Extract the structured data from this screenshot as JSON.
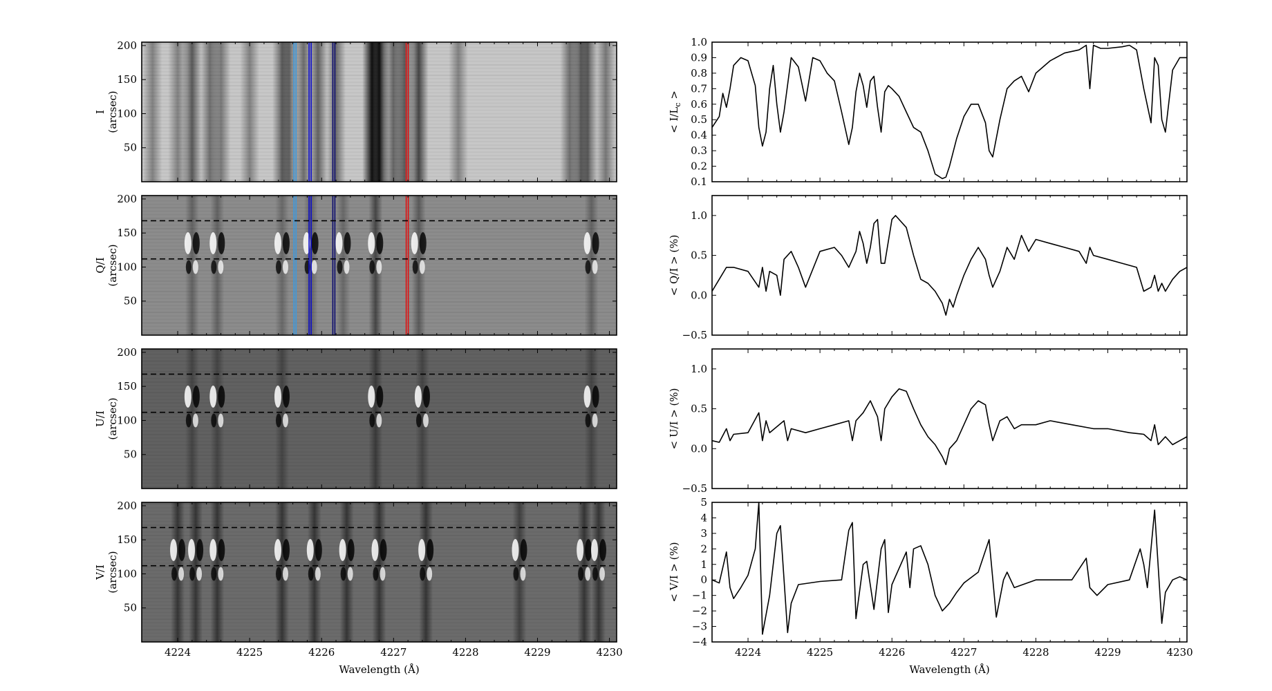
{
  "figure": {
    "wavelength_label": "Wavelength (Å)",
    "x_ticks": [
      4224,
      4225,
      4226,
      4227,
      4228,
      4229,
      4230
    ],
    "xlim": [
      4223.5,
      4230.1
    ]
  },
  "chart_data": [
    {
      "type": "heatmap",
      "panel": "I",
      "ylabel": [
        "I",
        "(arcsec)"
      ],
      "ylim": [
        0,
        205
      ],
      "y_ticks": [
        50,
        100,
        150,
        200
      ],
      "xlabel": "",
      "colormap": "gray",
      "background_level": 0.78,
      "band_center_wavelengths": [
        4223.65,
        4224.0,
        4224.2,
        4224.45,
        4224.6,
        4225.0,
        4225.45,
        4225.55,
        4225.75,
        4225.95,
        4226.2,
        4226.7,
        4226.8,
        4227.0,
        4227.15,
        4227.35,
        4227.9,
        4229.45,
        4229.6,
        4229.7,
        4229.95
      ],
      "band_darkness": [
        0.35,
        0.35,
        0.55,
        0.45,
        0.4,
        0.35,
        0.5,
        0.45,
        0.45,
        0.5,
        0.45,
        0.9,
        0.9,
        0.5,
        0.55,
        0.65,
        0.35,
        0.45,
        0.5,
        0.5,
        0.4
      ],
      "vertical_markers": [
        {
          "wavelength": 4225.63,
          "color": "#3b9ae1"
        },
        {
          "wavelength": 4225.84,
          "color": "#0a0ad0"
        },
        {
          "wavelength": 4226.17,
          "color": "#0a0a6e"
        },
        {
          "wavelength": 4227.19,
          "color": "#e01010"
        }
      ],
      "horizontal_dashed": []
    },
    {
      "type": "heatmap",
      "panel": "Q/I",
      "ylabel": [
        "Q/I",
        "(arcsec)"
      ],
      "ylim": [
        0,
        205
      ],
      "y_ticks": [
        50,
        100,
        150,
        200
      ],
      "xlabel": "",
      "colormap": "gray",
      "background_level": 0.55,
      "band_center_wavelengths": [
        4224.2,
        4224.55,
        4225.45,
        4225.85,
        4226.3,
        4226.75,
        4227.35,
        4229.75
      ],
      "band_darkness": [
        0.3,
        0.3,
        0.25,
        0.3,
        0.25,
        0.5,
        0.35,
        0.3
      ],
      "vertical_markers": [
        {
          "wavelength": 4225.63,
          "color": "#3b9ae1"
        },
        {
          "wavelength": 4225.84,
          "color": "#0a0ad0"
        },
        {
          "wavelength": 4226.17,
          "color": "#0a0a6e"
        },
        {
          "wavelength": 4227.19,
          "color": "#e01010"
        }
      ],
      "horizontal_dashed": [
        168,
        112
      ]
    },
    {
      "type": "heatmap",
      "panel": "U/I",
      "ylabel": [
        "U/I",
        "(arcsec)"
      ],
      "ylim": [
        0,
        205
      ],
      "y_ticks": [
        50,
        100,
        150,
        200
      ],
      "xlabel": "",
      "colormap": "gray",
      "background_level": 0.38,
      "band_center_wavelengths": [
        4224.2,
        4224.55,
        4225.45,
        4226.75,
        4227.4,
        4229.75
      ],
      "band_darkness": [
        0.3,
        0.3,
        0.3,
        0.4,
        0.3,
        0.3
      ],
      "vertical_markers": [],
      "horizontal_dashed": [
        168,
        112
      ]
    },
    {
      "type": "heatmap",
      "panel": "V/I",
      "ylabel": [
        "V/I",
        "(arcsec)"
      ],
      "ylim": [
        0,
        205
      ],
      "y_ticks": [
        50,
        100,
        150,
        200
      ],
      "xlabel": "Wavelength (Å)",
      "colormap": "gray",
      "background_level": 0.42,
      "band_center_wavelengths": [
        4224.0,
        4224.25,
        4224.55,
        4225.45,
        4225.9,
        4226.35,
        4226.8,
        4227.45,
        4228.75,
        4229.65,
        4229.85
      ],
      "band_darkness": [
        0.5,
        0.5,
        0.5,
        0.5,
        0.5,
        0.5,
        0.5,
        0.5,
        0.4,
        0.5,
        0.5
      ],
      "vertical_markers": [],
      "horizontal_dashed": [
        168,
        112
      ]
    },
    {
      "type": "line",
      "panel": "I",
      "ylabel": "< I/Lc >",
      "ylabel_main": "< I/L",
      "ylabel_sub": "c",
      "ylabel_end": " >",
      "ylim": [
        0.1,
        1.0
      ],
      "y_ticks": [
        0.1,
        0.2,
        0.3,
        0.4,
        0.5,
        0.6,
        0.7,
        0.8,
        0.9,
        1.0
      ],
      "y_tick_labels": [
        "0.1",
        "0.2",
        "0.3",
        "0.4",
        "0.5",
        "0.6",
        "0.7",
        "0.8",
        "0.9",
        "1.0"
      ],
      "xlabel": "",
      "x": [
        4223.5,
        4223.6,
        4223.65,
        4223.7,
        4223.75,
        4223.8,
        4223.9,
        4224.0,
        4224.1,
        4224.15,
        4224.2,
        4224.25,
        4224.3,
        4224.35,
        4224.4,
        4224.45,
        4224.5,
        4224.6,
        4224.7,
        4224.8,
        4224.9,
        4225.0,
        4225.1,
        4225.2,
        4225.3,
        4225.4,
        4225.45,
        4225.5,
        4225.55,
        4225.6,
        4225.65,
        4225.7,
        4225.75,
        4225.8,
        4225.85,
        4225.9,
        4225.95,
        4226.0,
        4226.1,
        4226.2,
        4226.3,
        4226.4,
        4226.5,
        4226.6,
        4226.7,
        4226.75,
        4226.8,
        4226.9,
        4227.0,
        4227.1,
        4227.2,
        4227.3,
        4227.35,
        4227.4,
        4227.5,
        4227.6,
        4227.7,
        4227.8,
        4227.9,
        4228.0,
        4228.2,
        4228.4,
        4228.6,
        4228.7,
        4228.75,
        4228.8,
        4228.9,
        4229.0,
        4229.2,
        4229.3,
        4229.4,
        4229.5,
        4229.6,
        4229.65,
        4229.7,
        4229.75,
        4229.8,
        4229.9,
        4230.0,
        4230.1
      ],
      "values": [
        0.45,
        0.52,
        0.67,
        0.58,
        0.7,
        0.85,
        0.9,
        0.88,
        0.72,
        0.45,
        0.33,
        0.42,
        0.7,
        0.85,
        0.6,
        0.42,
        0.55,
        0.9,
        0.84,
        0.62,
        0.9,
        0.88,
        0.8,
        0.75,
        0.55,
        0.34,
        0.45,
        0.68,
        0.8,
        0.72,
        0.58,
        0.75,
        0.78,
        0.58,
        0.42,
        0.68,
        0.72,
        0.7,
        0.65,
        0.55,
        0.45,
        0.42,
        0.3,
        0.15,
        0.12,
        0.13,
        0.2,
        0.38,
        0.52,
        0.6,
        0.6,
        0.48,
        0.3,
        0.26,
        0.5,
        0.7,
        0.75,
        0.78,
        0.68,
        0.8,
        0.88,
        0.93,
        0.95,
        0.98,
        0.7,
        0.98,
        0.96,
        0.96,
        0.97,
        0.98,
        0.95,
        0.7,
        0.48,
        0.9,
        0.85,
        0.5,
        0.42,
        0.82,
        0.9,
        0.9
      ]
    },
    {
      "type": "line",
      "panel": "Q/I",
      "ylabel": "< Q/I > (%)",
      "ylim": [
        -0.5,
        1.25
      ],
      "y_ticks": [
        -0.5,
        0.0,
        0.5,
        1.0
      ],
      "y_tick_labels": [
        "−0.5",
        "0.0",
        "0.5",
        "1.0"
      ],
      "xlabel": "",
      "x": [
        4223.5,
        4223.6,
        4223.7,
        4223.8,
        4224.0,
        4224.15,
        4224.2,
        4224.25,
        4224.3,
        4224.4,
        4224.45,
        4224.5,
        4224.6,
        4224.7,
        4224.8,
        4225.0,
        4225.2,
        4225.3,
        4225.4,
        4225.5,
        4225.55,
        4225.6,
        4225.65,
        4225.7,
        4225.75,
        4225.8,
        4225.85,
        4225.9,
        4226.0,
        4226.05,
        4226.2,
        4226.3,
        4226.4,
        4226.5,
        4226.6,
        4226.7,
        4226.75,
        4226.8,
        4226.85,
        4226.9,
        4227.0,
        4227.1,
        4227.2,
        4227.3,
        4227.35,
        4227.4,
        4227.5,
        4227.6,
        4227.7,
        4227.8,
        4227.9,
        4228.0,
        4228.2,
        4228.4,
        4228.6,
        4228.7,
        4228.75,
        4228.8,
        4229.0,
        4229.2,
        4229.4,
        4229.5,
        4229.6,
        4229.65,
        4229.7,
        4229.75,
        4229.8,
        4229.9,
        4230.0,
        4230.1
      ],
      "values": [
        0.05,
        0.2,
        0.35,
        0.35,
        0.3,
        0.1,
        0.35,
        0.05,
        0.3,
        0.25,
        0.0,
        0.45,
        0.55,
        0.35,
        0.1,
        0.55,
        0.6,
        0.5,
        0.35,
        0.55,
        0.8,
        0.65,
        0.4,
        0.6,
        0.9,
        0.95,
        0.4,
        0.4,
        0.95,
        1.0,
        0.85,
        0.5,
        0.2,
        0.15,
        0.05,
        -0.1,
        -0.25,
        -0.05,
        -0.15,
        0.0,
        0.25,
        0.45,
        0.6,
        0.45,
        0.25,
        0.1,
        0.3,
        0.6,
        0.45,
        0.75,
        0.55,
        0.7,
        0.65,
        0.6,
        0.55,
        0.4,
        0.6,
        0.5,
        0.45,
        0.4,
        0.35,
        0.05,
        0.1,
        0.25,
        0.05,
        0.15,
        0.05,
        0.2,
        0.3,
        0.35
      ]
    },
    {
      "type": "line",
      "panel": "U/I",
      "ylabel": "< U/I > (%)",
      "ylim": [
        -0.5,
        1.25
      ],
      "y_ticks": [
        -0.5,
        0.0,
        0.5,
        1.0
      ],
      "y_tick_labels": [
        "−0.5",
        "0.0",
        "0.5",
        "1.0"
      ],
      "xlabel": "",
      "x": [
        4223.5,
        4223.6,
        4223.7,
        4223.75,
        4223.8,
        4224.0,
        4224.15,
        4224.2,
        4224.25,
        4224.3,
        4224.5,
        4224.55,
        4224.6,
        4224.8,
        4225.0,
        4225.2,
        4225.4,
        4225.45,
        4225.5,
        4225.6,
        4225.7,
        4225.8,
        4225.85,
        4225.9,
        4226.0,
        4226.1,
        4226.2,
        4226.3,
        4226.4,
        4226.5,
        4226.6,
        4226.7,
        4226.75,
        4226.8,
        4226.9,
        4227.0,
        4227.1,
        4227.2,
        4227.3,
        4227.35,
        4227.4,
        4227.5,
        4227.6,
        4227.7,
        4227.8,
        4228.0,
        4228.2,
        4228.5,
        4228.8,
        4229.0,
        4229.3,
        4229.5,
        4229.6,
        4229.65,
        4229.7,
        4229.8,
        4229.9,
        4230.0,
        4230.1
      ],
      "values": [
        0.1,
        0.08,
        0.25,
        0.1,
        0.18,
        0.2,
        0.45,
        0.1,
        0.35,
        0.2,
        0.35,
        0.1,
        0.25,
        0.2,
        0.25,
        0.3,
        0.35,
        0.1,
        0.35,
        0.45,
        0.6,
        0.4,
        0.1,
        0.5,
        0.65,
        0.75,
        0.72,
        0.5,
        0.3,
        0.15,
        0.05,
        -0.1,
        -0.2,
        0.0,
        0.1,
        0.3,
        0.5,
        0.6,
        0.55,
        0.3,
        0.1,
        0.35,
        0.4,
        0.25,
        0.3,
        0.3,
        0.35,
        0.3,
        0.25,
        0.25,
        0.2,
        0.18,
        0.1,
        0.3,
        0.05,
        0.15,
        0.05,
        0.1,
        0.15
      ]
    },
    {
      "type": "line",
      "panel": "V/I",
      "ylabel": "< V/I > (%)",
      "ylim": [
        -4,
        5
      ],
      "y_ticks": [
        -4,
        -3,
        -2,
        -1,
        0,
        1,
        2,
        3,
        4,
        5
      ],
      "y_tick_labels": [
        "−4",
        "−3",
        "−2",
        "−1",
        "0",
        "1",
        "2",
        "3",
        "4",
        "5"
      ],
      "xlabel": "Wavelength (Å)",
      "x": [
        4223.5,
        4223.6,
        4223.7,
        4223.75,
        4223.8,
        4223.9,
        4224.0,
        4224.1,
        4224.15,
        4224.2,
        4224.3,
        4224.4,
        4224.45,
        4224.55,
        4224.6,
        4224.7,
        4225.0,
        4225.3,
        4225.4,
        4225.45,
        4225.5,
        4225.6,
        4225.65,
        4225.75,
        4225.85,
        4225.9,
        4225.95,
        4226.0,
        4226.2,
        4226.25,
        4226.3,
        4226.4,
        4226.5,
        4226.6,
        4226.7,
        4226.8,
        4226.9,
        4227.0,
        4227.2,
        4227.35,
        4227.45,
        4227.55,
        4227.6,
        4227.7,
        4228.0,
        4228.5,
        4228.7,
        4228.75,
        4228.85,
        4229.0,
        4229.3,
        4229.45,
        4229.5,
        4229.55,
        4229.65,
        4229.75,
        4229.8,
        4229.9,
        4230.0,
        4230.1
      ],
      "values": [
        0.0,
        -0.2,
        1.8,
        -0.5,
        -1.2,
        -0.5,
        0.3,
        2.0,
        5.0,
        -3.5,
        -1.0,
        3.0,
        3.5,
        -3.4,
        -1.5,
        -0.3,
        -0.1,
        0.0,
        3.2,
        3.7,
        -2.5,
        1.0,
        1.2,
        -1.9,
        2.0,
        2.6,
        -2.1,
        -0.3,
        1.8,
        -0.5,
        2.0,
        2.2,
        1.0,
        -1.0,
        -2.0,
        -1.5,
        -0.8,
        -0.2,
        0.5,
        2.6,
        -2.4,
        0.0,
        0.5,
        -0.5,
        0.0,
        0.0,
        1.4,
        -0.5,
        -1.0,
        -0.3,
        0.0,
        2.0,
        1.0,
        -0.5,
        4.5,
        -2.8,
        -0.8,
        0.0,
        0.2,
        0.0
      ]
    }
  ]
}
